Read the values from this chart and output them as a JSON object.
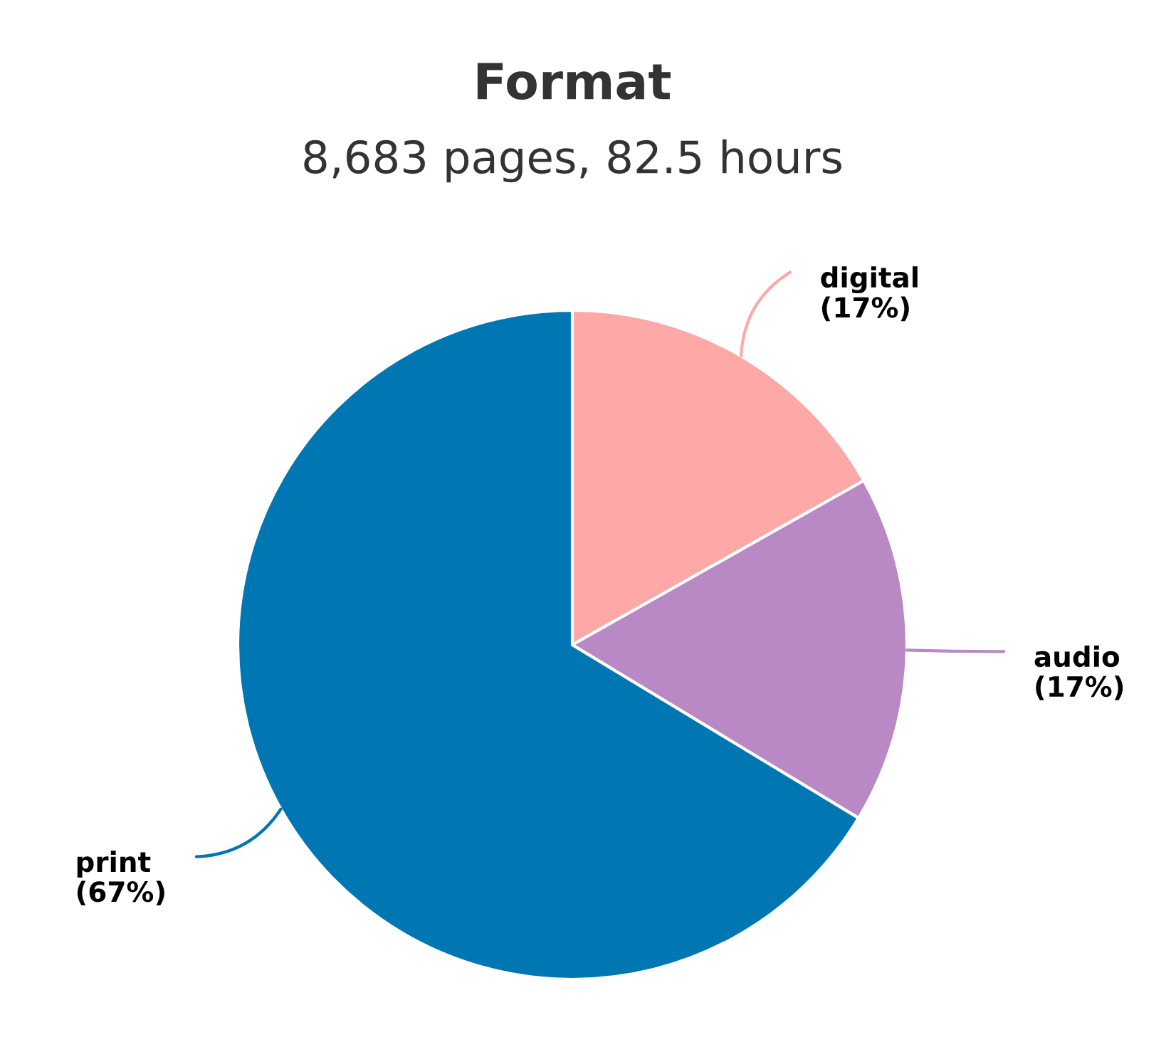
{
  "chart_data": {
    "type": "pie",
    "title": "Format",
    "subtitle": "8,683 pages, 82.5 hours",
    "categories": [
      "digital",
      "audio",
      "print"
    ],
    "values": [
      17,
      17,
      67
    ],
    "colors": [
      "#fea8a8",
      "#b889c4",
      "#0077b3"
    ],
    "value_labels": [
      "(17%)",
      "(17%)",
      "(67%)"
    ]
  }
}
